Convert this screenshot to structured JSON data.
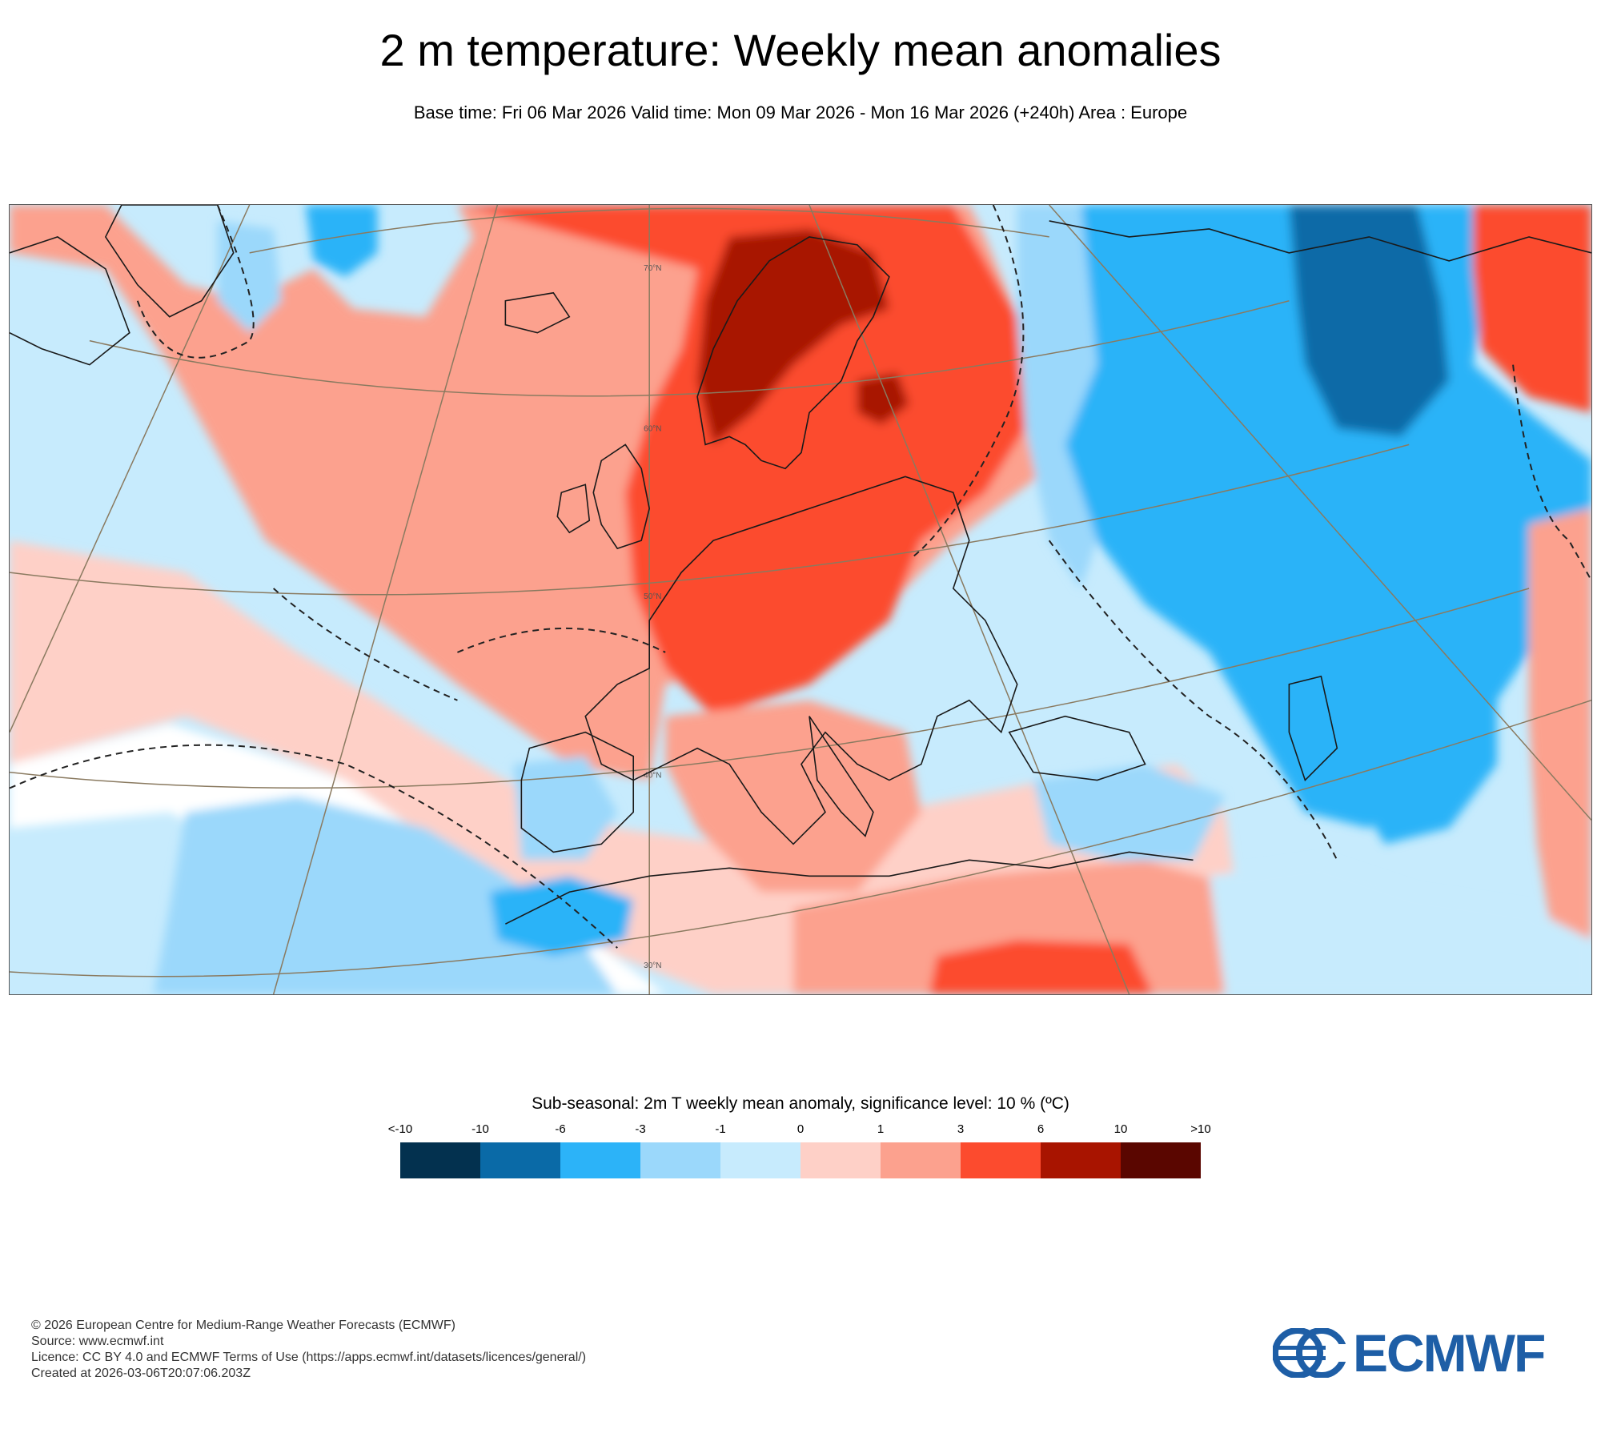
{
  "title": "2 m temperature: Weekly mean anomalies",
  "subtitle": "Base time: Fri 06 Mar 2026 Valid time: Mon 09 Mar 2026 - Mon 16 Mar 2026 (+240h) Area : Europe",
  "map": {
    "area": "Europe",
    "lat_labels": [
      "70°N",
      "60°N",
      "50°N",
      "40°N",
      "30°N"
    ],
    "lat_values_deg": [
      70,
      60,
      50,
      40,
      30
    ]
  },
  "legend": {
    "title": "Sub-seasonal: 2m T weekly mean anomaly, significance level: 10 % (ºC)",
    "labels": [
      "<-10",
      "-10",
      "-6",
      "-3",
      "-1",
      "0",
      "1",
      "3",
      "6",
      "10",
      ">10"
    ],
    "colors": [
      "#03314f",
      "#0a6aa7",
      "#2cb3f8",
      "#9bd8fb",
      "#c7ebfd",
      "#fed0c7",
      "#fca18e",
      "#fc4b2e",
      "#a81400",
      "#5a0600"
    ]
  },
  "footer": [
    "© 2026 European Centre for Medium-Range Weather Forecasts (ECMWF)",
    "Source: www.ecmwf.int",
    "Licence: CC BY 4.0 and ECMWF Terms of Use (https://apps.ecmwf.int/datasets/licences/general/)",
    "Created at 2026-03-06T20:07:06.203Z"
  ],
  "logo": {
    "text": "ECMWF",
    "color": "#1e5ea6"
  }
}
